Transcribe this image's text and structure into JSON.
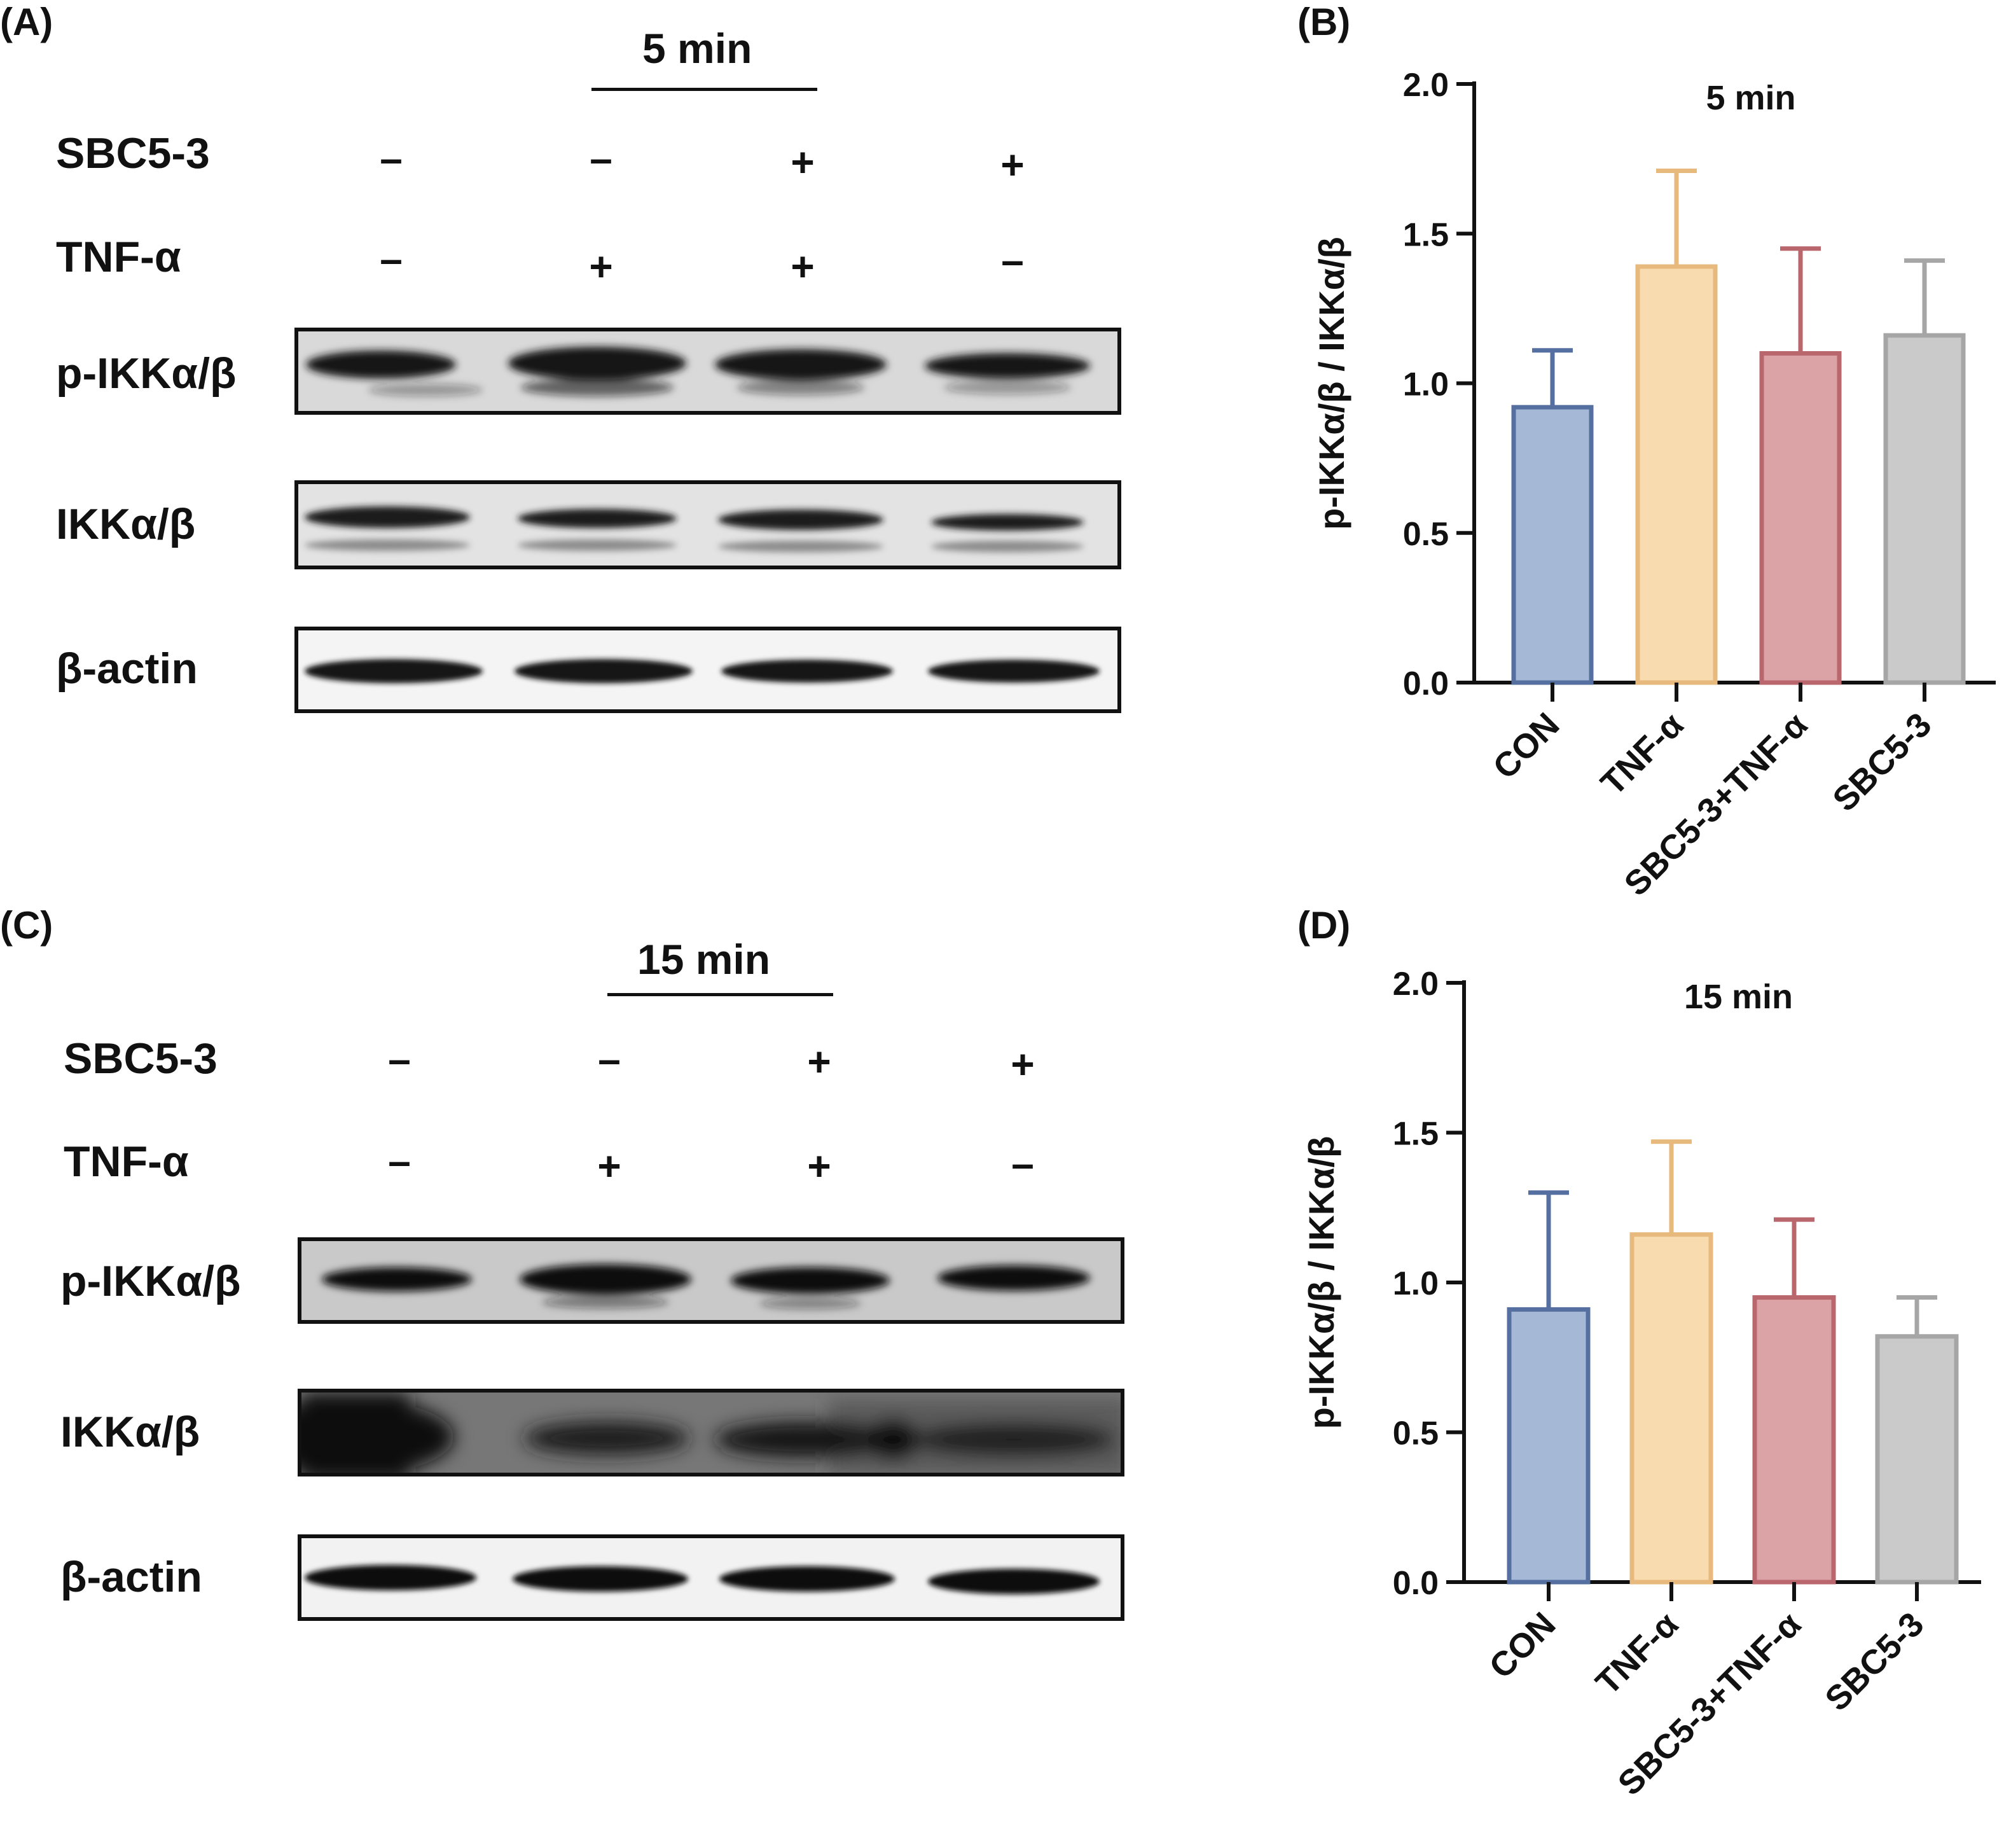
{
  "panels": {
    "A": {
      "label": "(A)",
      "time": "5 min",
      "treatment_rows": [
        {
          "name": "SBC5-3",
          "signs": [
            "–",
            "–",
            "+",
            "+"
          ]
        },
        {
          "name": "TNF-α",
          "signs": [
            "–",
            "+",
            "+",
            "–"
          ]
        }
      ],
      "blot_rows": [
        "p-IKKα/β",
        "IKKα/β",
        "β-actin"
      ]
    },
    "B": {
      "label": "(B)"
    },
    "C": {
      "label": "(C)",
      "time": "15 min",
      "treatment_rows": [
        {
          "name": "SBC5-3",
          "signs": [
            "–",
            "–",
            "+",
            "+"
          ]
        },
        {
          "name": "TNF-α",
          "signs": [
            "–",
            "+",
            "+",
            "–"
          ]
        }
      ],
      "blot_rows": [
        "p-IKKα/β",
        "IKKα/β",
        "β-actin"
      ]
    },
    "D": {
      "label": "(D)"
    }
  },
  "chart_data": [
    {
      "type": "bar",
      "panel": "B",
      "title": "5 min",
      "ylabel": "p-IKKα/β / IKKα/β",
      "categories": [
        "CON",
        "TNF-α",
        "SBC5-3+TNF-α",
        "SBC5-3"
      ],
      "values": [
        0.92,
        1.39,
        1.1,
        1.16
      ],
      "errors": [
        0.19,
        0.32,
        0.35,
        0.25
      ],
      "ylim": [
        0,
        2.0
      ],
      "yticks": [
        "0.0",
        "0.5",
        "1.0",
        "1.5",
        "2.0"
      ],
      "ytick_values": [
        0,
        0.5,
        1.0,
        1.5,
        2.0
      ],
      "fill_colors": [
        "#a5b8d6",
        "#f8dcb0",
        "#dba3a6",
        "#cacaca"
      ],
      "edge_colors": [
        "#5570a0",
        "#e7b97c",
        "#b9666d",
        "#a6a6a6"
      ]
    },
    {
      "type": "bar",
      "panel": "D",
      "title": "15 min",
      "ylabel": "p-IKKα/β / IKKα/β",
      "categories": [
        "CON",
        "TNF-α",
        "SBC5-3+TNF-α",
        "SBC5-3"
      ],
      "values": [
        0.91,
        1.16,
        0.95,
        0.82
      ],
      "errors": [
        0.39,
        0.31,
        0.26,
        0.13
      ],
      "ylim": [
        0,
        2.0
      ],
      "yticks": [
        "0.0",
        "0.5",
        "1.0",
        "1.5",
        "2.0"
      ],
      "ytick_values": [
        0,
        0.5,
        1.0,
        1.5,
        2.0
      ],
      "fill_colors": [
        "#a5b8d6",
        "#f8dcb0",
        "#dba3a6",
        "#cacaca"
      ],
      "edge_colors": [
        "#5570a0",
        "#e7b97c",
        "#b9666d",
        "#a6a6a6"
      ]
    }
  ]
}
